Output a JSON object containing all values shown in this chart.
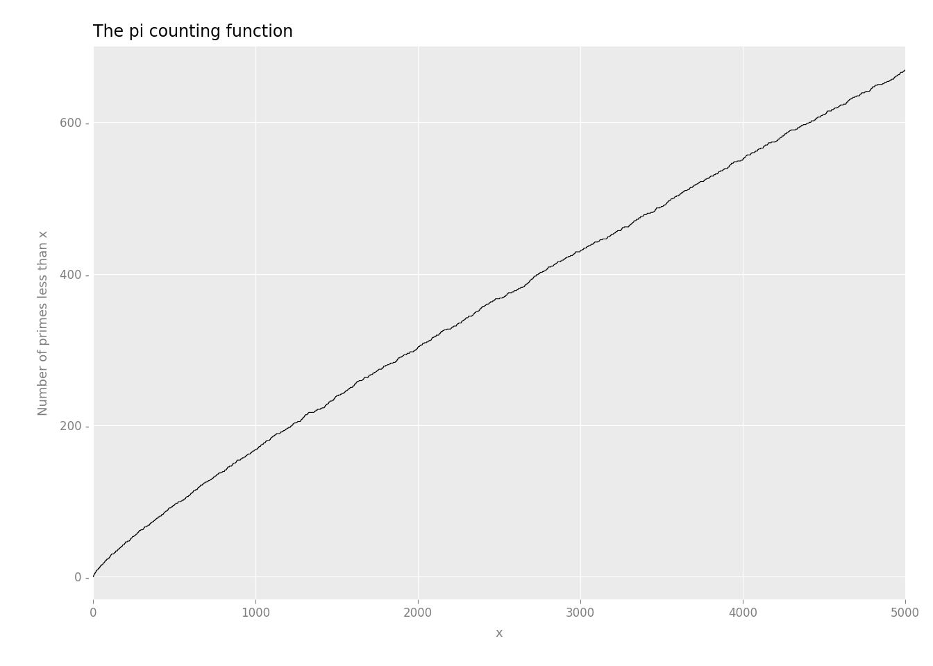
{
  "title": "The pi counting function",
  "xlabel": "x",
  "ylabel": "Number of primes less than x",
  "x_min": 0,
  "x_max": 5000,
  "y_min": -30,
  "y_max": 700,
  "x_ticks": [
    0,
    1000,
    2000,
    3000,
    4000,
    5000
  ],
  "y_ticks": [
    0,
    200,
    400,
    600
  ],
  "background_color": "#EBEBEB",
  "figure_background": "#FFFFFF",
  "grid_color": "#FFFFFF",
  "line_color": "#000000",
  "title_fontsize": 17,
  "label_fontsize": 13,
  "tick_fontsize": 12,
  "tick_color": "#7F7F7F",
  "title_color": "#000000"
}
